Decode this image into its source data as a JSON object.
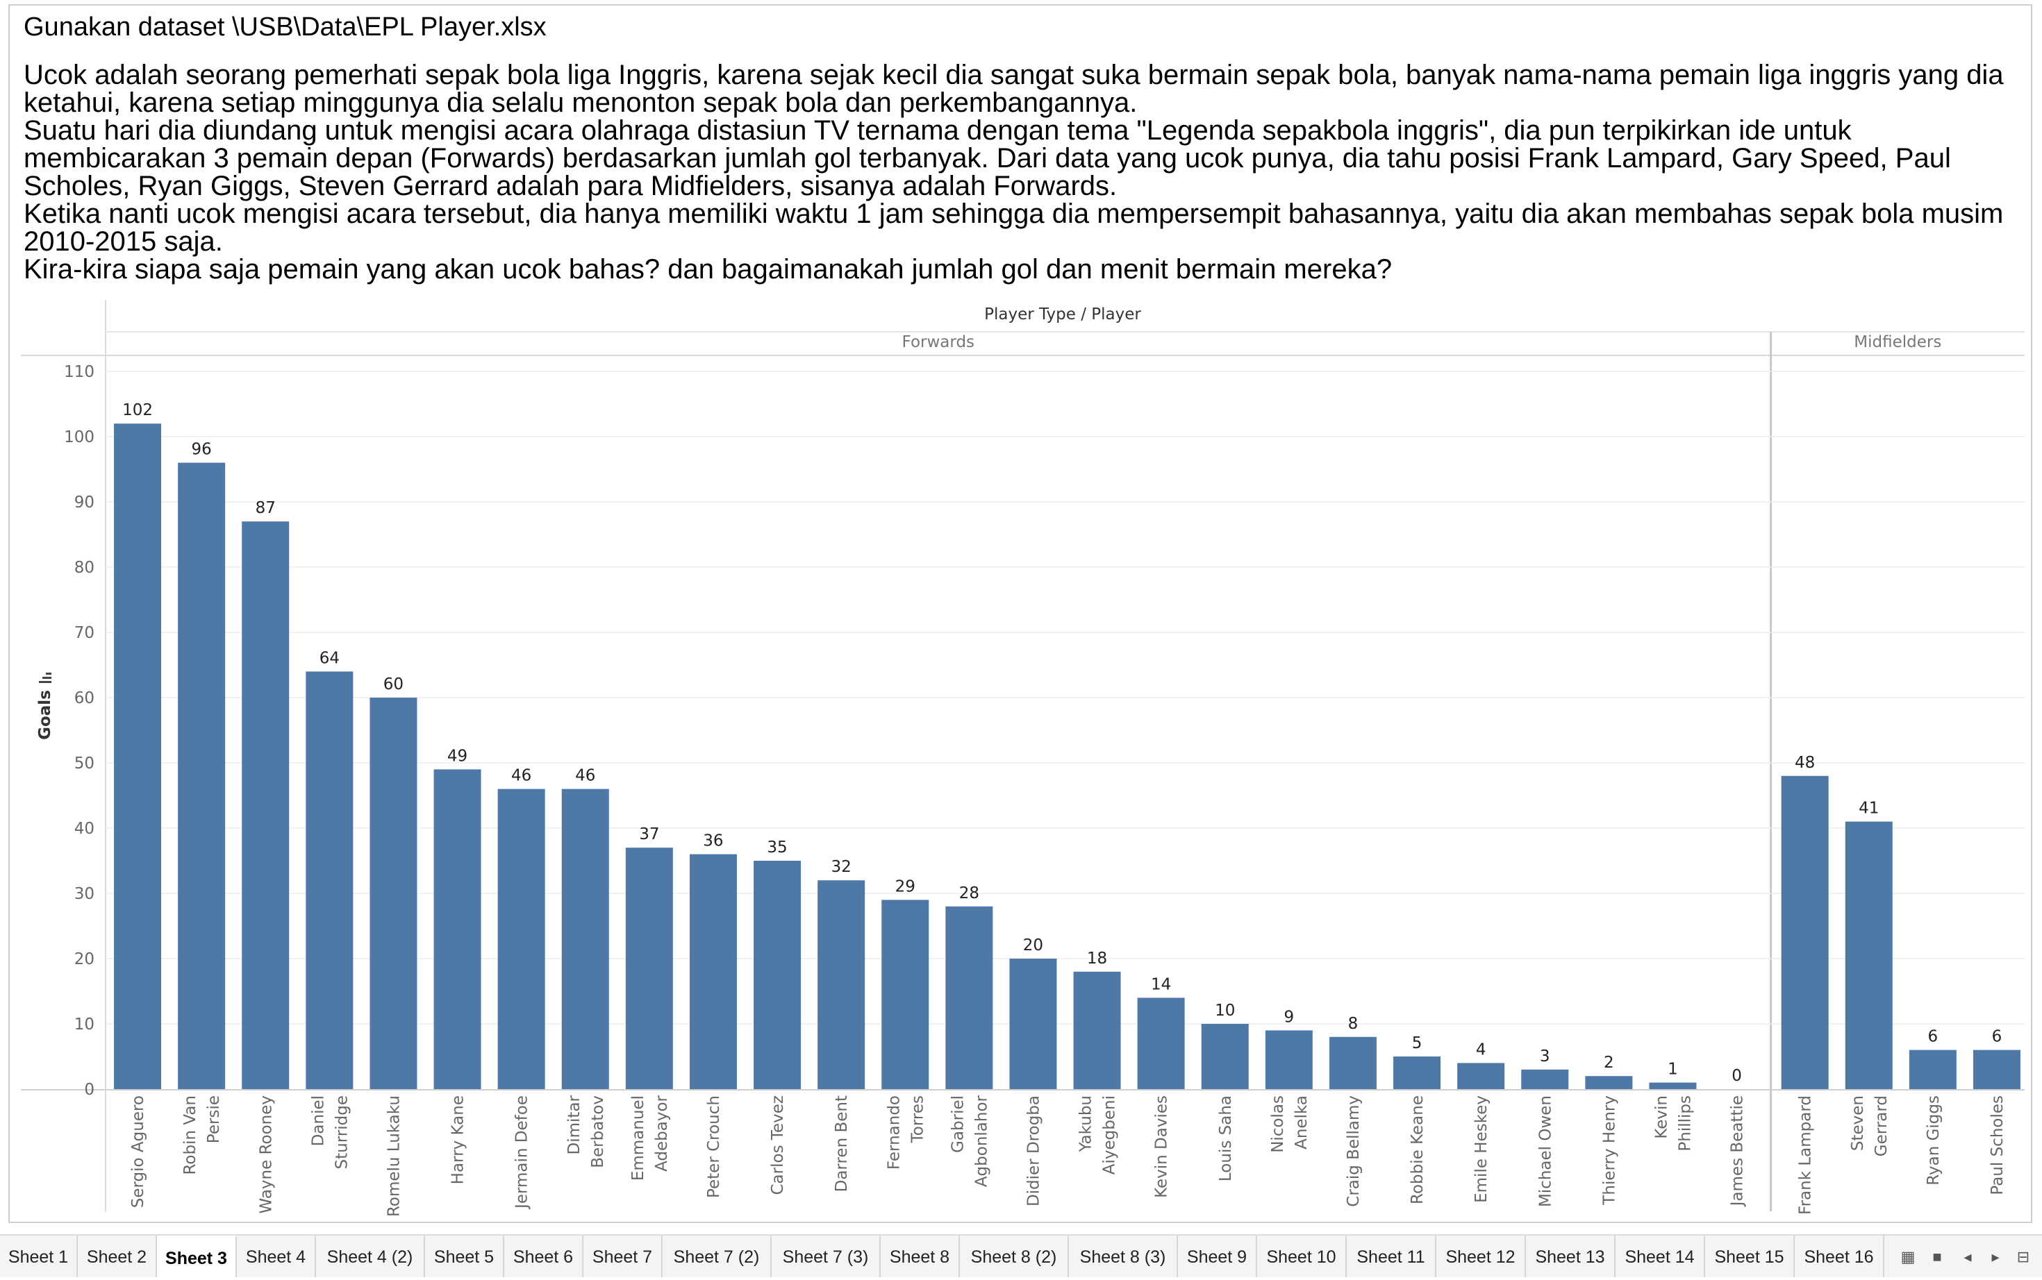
{
  "heading": "Gunakan dataset \\USB\\Data\\EPL Player.xlsx",
  "description_lines": [
    "Ucok adalah seorang pemerhati sepak bola liga Inggris, karena sejak kecil dia sangat suka bermain sepak bola, banyak nama-nama pemain liga inggris yang dia",
    "ketahui, karena setiap minggunya dia selalu menonton sepak bola dan perkembangannya.",
    "Suatu hari dia diundang untuk mengisi acara olahraga distasiun TV ternama dengan tema \"Legenda sepakbola inggris\", dia pun terpikirkan ide untuk",
    "membicarakan 3 pemain depan (Forwards) berdasarkan jumlah gol terbanyak. Dari data yang ucok punya, dia tahu posisi Frank Lampard, Gary Speed, Paul",
    "Scholes, Ryan Giggs, Steven Gerrard adalah para Midfielders, sisanya adalah Forwards.",
    "Ketika nanti ucok mengisi acara tersebut, dia hanya memiliki waktu 1 jam sehingga dia mempersempit bahasannya, yaitu dia akan membahas sepak bola musim",
    "2010-2015 saja.",
    "Kira-kira siapa saja pemain yang akan ucok bahas? dan bagaimanakah jumlah gol dan menit bermain mereka?"
  ],
  "chart_data": {
    "type": "bar",
    "header_title": "Player Type / Player",
    "ylabel": "Goals",
    "ylim": [
      0,
      110
    ],
    "yticks": [
      0,
      10,
      20,
      30,
      40,
      50,
      60,
      70,
      80,
      90,
      100,
      110
    ],
    "grid": true,
    "bar_color": "#4e79a7",
    "groups": [
      {
        "name": "Forwards",
        "players": [
          {
            "name": "Sergio Aguero",
            "goals": 102
          },
          {
            "name": "Robin Van Persie",
            "goals": 96
          },
          {
            "name": "Wayne Rooney",
            "goals": 87
          },
          {
            "name": "Daniel Sturridge",
            "goals": 64
          },
          {
            "name": "Romelu Lukaku",
            "goals": 60
          },
          {
            "name": "Harry Kane",
            "goals": 49
          },
          {
            "name": "Jermain Defoe",
            "goals": 46
          },
          {
            "name": "Dimitar Berbatov",
            "goals": 46
          },
          {
            "name": "Emmanuel Adebayor",
            "goals": 37
          },
          {
            "name": "Peter Crouch",
            "goals": 36
          },
          {
            "name": "Carlos Tevez",
            "goals": 35
          },
          {
            "name": "Darren Bent",
            "goals": 32
          },
          {
            "name": "Fernando Torres",
            "goals": 29
          },
          {
            "name": "Gabriel Agbonlahor",
            "goals": 28
          },
          {
            "name": "Didier Drogba",
            "goals": 20
          },
          {
            "name": "Yakubu Aiyegbeni",
            "goals": 18
          },
          {
            "name": "Kevin Davies",
            "goals": 14
          },
          {
            "name": "Louis Saha",
            "goals": 10
          },
          {
            "name": "Nicolas Anelka",
            "goals": 9
          },
          {
            "name": "Craig Bellamy",
            "goals": 8
          },
          {
            "name": "Robbie Keane",
            "goals": 5
          },
          {
            "name": "Emile Heskey",
            "goals": 4
          },
          {
            "name": "Michael Owen",
            "goals": 3
          },
          {
            "name": "Thierry Henry",
            "goals": 2
          },
          {
            "name": "Kevin Phillips",
            "goals": 1
          },
          {
            "name": "James Beattie",
            "goals": 0
          }
        ]
      },
      {
        "name": "Midfielders",
        "players": [
          {
            "name": "Frank Lampard",
            "goals": 48
          },
          {
            "name": "Steven Gerrard",
            "goals": 41
          },
          {
            "name": "Ryan Giggs",
            "goals": 6
          },
          {
            "name": "Paul Scholes",
            "goals": 6
          }
        ]
      }
    ]
  },
  "tabs": [
    {
      "label": "Sheet 1"
    },
    {
      "label": "Sheet 2"
    },
    {
      "label": "Sheet 3",
      "active": true
    },
    {
      "label": "Sheet 4"
    },
    {
      "label": "Sheet 4 (2)"
    },
    {
      "label": "Sheet 5"
    },
    {
      "label": "Sheet 6"
    },
    {
      "label": "Sheet 7"
    },
    {
      "label": "Sheet 7 (2)"
    },
    {
      "label": "Sheet 7 (3)"
    },
    {
      "label": "Sheet 8"
    },
    {
      "label": "Sheet 8 (2)"
    },
    {
      "label": "Sheet 8 (3)"
    },
    {
      "label": "Sheet 9"
    },
    {
      "label": "Sheet 10"
    },
    {
      "label": "Sheet 11"
    },
    {
      "label": "Sheet 12"
    },
    {
      "label": "Sheet 13"
    },
    {
      "label": "Sheet 14"
    },
    {
      "label": "Sheet 15"
    },
    {
      "label": "Sheet 16"
    }
  ],
  "nav_icons": [
    "grid-view-icon",
    "filmstrip-view-icon",
    "previous-sheet-icon",
    "next-sheet-icon",
    "presentation-icon"
  ]
}
